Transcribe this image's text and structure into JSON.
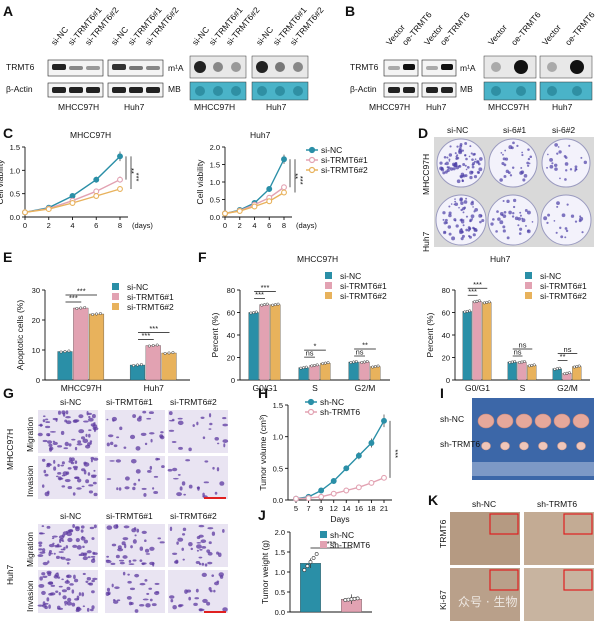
{
  "panels": {
    "A": {
      "letter": "A",
      "lanes": [
        "si-NC",
        "si-TRMT6#1",
        "si-TRMT6#2",
        "si-NC",
        "si-TRMT6#1",
        "si-TRMT6#2"
      ],
      "rows": [
        "TRMT6",
        "β-Actin"
      ],
      "cells": [
        "MHCC97H",
        "Huh7"
      ],
      "dot_rows": [
        "m¹A",
        "MB"
      ],
      "dot_cells": [
        "MHCC97H",
        "Huh7"
      ]
    },
    "B": {
      "letter": "B",
      "lanes": [
        "Vector",
        "oe-TRMT6",
        "Vector",
        "oe-TRMT6"
      ],
      "rows": [
        "TRMT6",
        "β-Actin"
      ],
      "cells": [
        "MHCC97H",
        "Huh7"
      ],
      "dot_rows": [
        "m¹A",
        "MB"
      ]
    },
    "C": {
      "letter": "C"
    },
    "D": {
      "letter": "D",
      "cols": [
        "si-NC",
        "si-6#1",
        "si-6#2"
      ],
      "rows": [
        "MHCC97H",
        "Huh7"
      ]
    },
    "E": {
      "letter": "E"
    },
    "F": {
      "letter": "F"
    },
    "G": {
      "letter": "G",
      "cols": [
        "si-NC",
        "si-TRMT6#1",
        "si-TRMT6#2"
      ],
      "rows": [
        "Migration",
        "Invasion"
      ],
      "cells": [
        "MHCC97H",
        "Huh7"
      ]
    },
    "H": {
      "letter": "H"
    },
    "I": {
      "letter": "I",
      "rows": [
        "sh-NC",
        "sh-TRMT6"
      ]
    },
    "J": {
      "letter": "J"
    },
    "K": {
      "letter": "K",
      "cols": [
        "sh-NC",
        "sh-TRMT6"
      ],
      "rows": [
        "TRMT6",
        "Ki-67"
      ],
      "watermark": "众号 · 生物"
    }
  },
  "chart_data": [
    {
      "id": "C1",
      "type": "line",
      "title": "MHCC97H",
      "xlabel": "(days)",
      "ylabel": "Cell viability",
      "x": [
        0,
        2,
        4,
        6,
        8
      ],
      "xticks": [
        0,
        2,
        4,
        6,
        8
      ],
      "ylim": [
        0,
        1.5
      ],
      "yticks": [
        0.0,
        0.5,
        1.0,
        1.5
      ],
      "series": [
        {
          "name": "si-NC",
          "values": [
            0.1,
            0.2,
            0.45,
            0.8,
            1.3
          ],
          "color": "#2a8fa7"
        },
        {
          "name": "si-TRMT6#1",
          "values": [
            0.1,
            0.18,
            0.35,
            0.55,
            0.8
          ],
          "color": "#e2a2b2"
        },
        {
          "name": "si-TRMT6#2",
          "values": [
            0.1,
            0.17,
            0.3,
            0.45,
            0.6
          ],
          "color": "#e8b25c"
        }
      ],
      "sig": [
        "**",
        "***"
      ]
    },
    {
      "id": "C2",
      "type": "line",
      "title": "Huh7",
      "xlabel": "(days)",
      "ylabel": "Cell viability",
      "x": [
        0,
        2,
        4,
        6,
        8
      ],
      "xticks": [
        0,
        2,
        4,
        6,
        8
      ],
      "ylim": [
        0,
        2.0
      ],
      "yticks": [
        0.0,
        0.5,
        1.0,
        1.5,
        2.0
      ],
      "series": [
        {
          "name": "si-NC",
          "values": [
            0.1,
            0.2,
            0.4,
            0.8,
            1.65
          ],
          "color": "#2a8fa7"
        },
        {
          "name": "si-TRMT6#1",
          "values": [
            0.1,
            0.18,
            0.35,
            0.55,
            0.85
          ],
          "color": "#e2a2b2"
        },
        {
          "name": "si-TRMT6#2",
          "values": [
            0.1,
            0.17,
            0.3,
            0.45,
            0.7
          ],
          "color": "#e8b25c"
        }
      ],
      "sig": [
        "**",
        "***"
      ]
    },
    {
      "id": "E",
      "type": "bar",
      "ylabel": "Apoptotic cells (%)",
      "categories": [
        "MHCC97H",
        "Huh7"
      ],
      "ylim": [
        0,
        30
      ],
      "yticks": [
        0,
        10,
        20,
        30
      ],
      "series": [
        {
          "name": "si-NC",
          "values": [
            9.5,
            5.0
          ],
          "color": "#2a8fa7"
        },
        {
          "name": "si-TRMT6#1",
          "values": [
            24,
            11.5
          ],
          "color": "#e2a2b2"
        },
        {
          "name": "si-TRMT6#2",
          "values": [
            22,
            9.0
          ],
          "color": "#e8b25c"
        }
      ],
      "sig": [
        [
          "***",
          "***"
        ],
        [
          "***",
          "***"
        ]
      ]
    },
    {
      "id": "F1",
      "type": "bar",
      "title": "MHCC97H",
      "ylabel": "Percent (%)",
      "categories": [
        "G0/G1",
        "S",
        "G2/M"
      ],
      "ylim": [
        0,
        80
      ],
      "yticks": [
        0,
        20,
        40,
        60,
        80
      ],
      "series": [
        {
          "name": "si-NC",
          "values": [
            60,
            11,
            16
          ],
          "color": "#2a8fa7"
        },
        {
          "name": "si-TRMT6#1",
          "values": [
            67,
            13,
            16
          ],
          "color": "#e2a2b2"
        },
        {
          "name": "si-TRMT6#2",
          "values": [
            67,
            15,
            12
          ],
          "color": "#e8b25c"
        }
      ],
      "sig": [
        [
          "***",
          "***"
        ],
        [
          "ns",
          "*"
        ],
        [
          "ns",
          "**"
        ]
      ]
    },
    {
      "id": "F2",
      "type": "bar",
      "title": "Huh7",
      "ylabel": "Percent (%)",
      "categories": [
        "G0/G1",
        "S",
        "G2/M"
      ],
      "ylim": [
        0,
        80
      ],
      "yticks": [
        0,
        20,
        40,
        60,
        80
      ],
      "series": [
        {
          "name": "si-NC",
          "values": [
            61,
            16,
            10
          ],
          "color": "#2a8fa7"
        },
        {
          "name": "si-TRMT6#1",
          "values": [
            70,
            16,
            6
          ],
          "color": "#e2a2b2"
        },
        {
          "name": "si-TRMT6#2",
          "values": [
            69,
            13,
            12
          ],
          "color": "#e8b25c"
        }
      ],
      "sig": [
        [
          "***",
          "***"
        ],
        [
          "ns",
          "ns"
        ],
        [
          "**",
          "ns"
        ]
      ]
    },
    {
      "id": "H",
      "type": "line",
      "xlabel": "Days",
      "ylabel": "Tumor volume (cm³)",
      "x": [
        5,
        7,
        9,
        12,
        14,
        16,
        18,
        21
      ],
      "xticks": [
        5,
        7,
        9,
        12,
        14,
        16,
        18,
        21
      ],
      "ylim": [
        0,
        1.5
      ],
      "yticks": [
        0.0,
        0.5,
        1.0,
        1.5
      ],
      "series": [
        {
          "name": "sh-NC",
          "values": [
            0.02,
            0.05,
            0.15,
            0.3,
            0.5,
            0.7,
            0.9,
            1.25
          ],
          "color": "#2a8fa7"
        },
        {
          "name": "sh-TRMT6",
          "values": [
            0.02,
            0.03,
            0.05,
            0.1,
            0.15,
            0.2,
            0.27,
            0.35
          ],
          "color": "#e2a2b2"
        }
      ],
      "sig": [
        "***"
      ]
    },
    {
      "id": "J",
      "type": "bar",
      "ylabel": "Tumor weight (g)",
      "categories": [
        "sh-NC",
        "sh-TRMT6"
      ],
      "ylim": [
        0,
        2.0
      ],
      "yticks": [
        0.0,
        0.5,
        1.0,
        1.5,
        2.0
      ],
      "series": [
        {
          "values": [
            1.22,
            0.32
          ]
        }
      ],
      "colors": [
        "#2a8fa7",
        "#e2a2b2"
      ],
      "points": [
        [
          1.05,
          1.15,
          1.25,
          1.35,
          1.45
        ],
        [
          0.3,
          0.31,
          0.32,
          0.33,
          0.34
        ]
      ],
      "legend": [
        "sh-NC",
        "sh-TRMT6"
      ],
      "sig": [
        "***"
      ]
    }
  ]
}
